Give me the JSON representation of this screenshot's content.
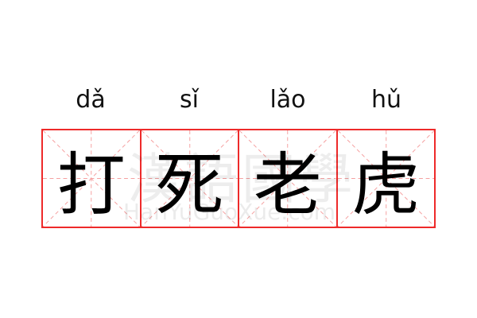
{
  "pinyin": [
    "dǎ",
    "sǐ",
    "lǎo",
    "hǔ"
  ],
  "characters": [
    "打",
    "死",
    "老",
    "虎"
  ],
  "watermark": {
    "chinese": "漢語國學",
    "latin": "HanYuGuoXue.com"
  },
  "colors": {
    "border": "#ee2a2a",
    "guide": "#f5a0a0"
  }
}
